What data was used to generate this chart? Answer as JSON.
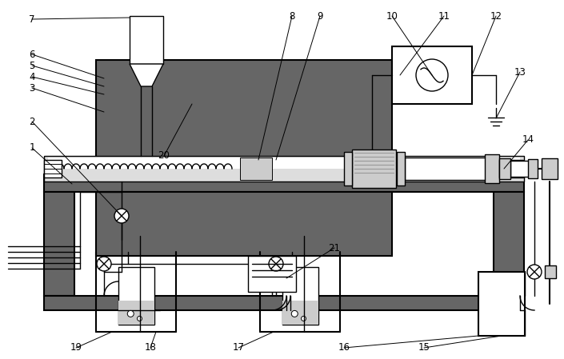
{
  "bg_color": "#ffffff",
  "dark_gray": "#666666",
  "mid_gray": "#999999",
  "light_gray": "#cccccc",
  "tube_gray": "#dddddd",
  "lw_main": 1.5,
  "lw_thin": 1.0,
  "lw_thick": 2.5,
  "figw": 7.05,
  "figh": 4.49,
  "dpi": 100
}
